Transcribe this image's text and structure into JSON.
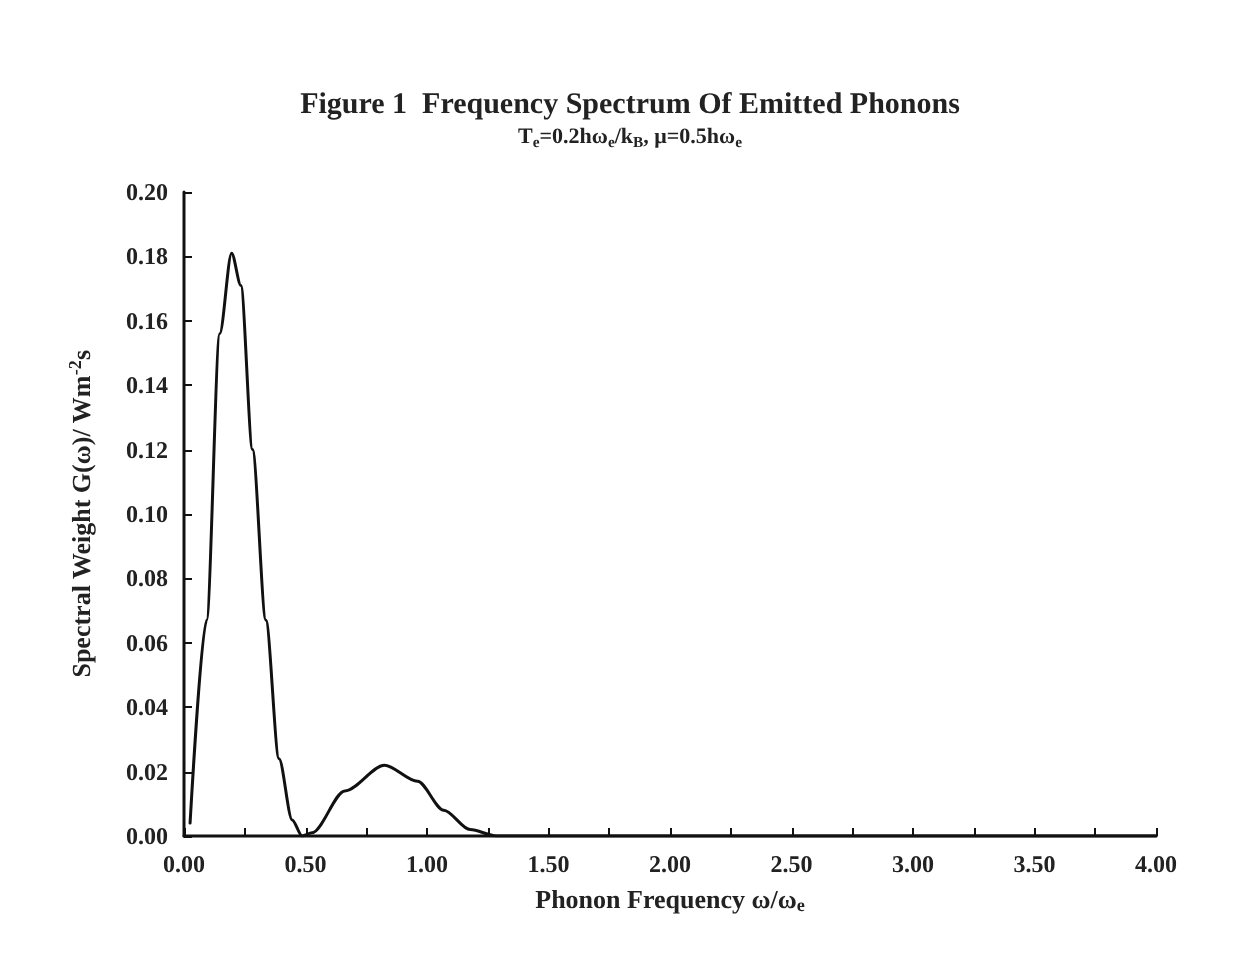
{
  "chart_data": {
    "type": "line",
    "title": "Figure 1  Frequency Spectrum Of Emitted Phonons",
    "subtitle": "T$_{e}$=0.2hω$_{e}$/k$_{B}$, μ=0.5hω$_{e}$",
    "xlabel": "Phonon Frequency ω/ω$_{e}$",
    "ylabel": "Spectral Weight G(ω)/ Wm$^{-2}$s",
    "x": [
      0.025,
      0.093,
      0.147,
      0.196,
      0.234,
      0.282,
      0.337,
      0.391,
      0.445,
      0.486,
      0.527,
      0.662,
      0.825,
      0.961,
      1.069,
      1.177,
      1.286,
      2.0,
      3.0,
      4.0
    ],
    "series": [
      {
        "color": "#111111",
        "values": [
          0.004,
          0.067,
          0.156,
          0.181,
          0.171,
          0.12,
          0.067,
          0.024,
          0.005,
          0.0,
          0.001,
          0.014,
          0.022,
          0.017,
          0.008,
          0.002,
          0.0,
          0.0,
          0.0,
          0.0
        ]
      }
    ],
    "xlim": [
      0,
      4
    ],
    "xticks": [
      {
        "value": 0,
        "label": "0.00"
      },
      {
        "value": 0.25,
        "label": null
      },
      {
        "value": 0.5,
        "label": "0.50"
      },
      {
        "value": 0.75,
        "label": null
      },
      {
        "value": 1,
        "label": "1.00"
      },
      {
        "value": 1.25,
        "label": null
      },
      {
        "value": 1.5,
        "label": "1.50"
      },
      {
        "value": 1.75,
        "label": null
      },
      {
        "value": 2,
        "label": "2.00"
      },
      {
        "value": 2.25,
        "label": null
      },
      {
        "value": 2.5,
        "label": "2.50"
      },
      {
        "value": 2.75,
        "label": null
      },
      {
        "value": 3,
        "label": "3.00"
      },
      {
        "value": 3.25,
        "label": null
      },
      {
        "value": 3.5,
        "label": "3.50"
      },
      {
        "value": 3.75,
        "label": null
      },
      {
        "value": 4,
        "label": "4.00"
      }
    ],
    "ylim": [
      0,
      0.2
    ],
    "yticks": [
      {
        "value": 0,
        "label": "0.00"
      },
      {
        "value": 0.02,
        "label": "0.02"
      },
      {
        "value": 0.04,
        "label": "0.04"
      },
      {
        "value": 0.06,
        "label": "0.06"
      },
      {
        "value": 0.08,
        "label": "0.08"
      },
      {
        "value": 0.1,
        "label": "0.10"
      },
      {
        "value": 0.12,
        "label": "0.12"
      },
      {
        "value": 0.14,
        "label": "0.14"
      },
      {
        "value": 0.16,
        "label": "0.16"
      },
      {
        "value": 0.18,
        "label": "0.18"
      },
      {
        "value": 0.2,
        "label": "0.20"
      }
    ],
    "grid": false,
    "marker": "none",
    "line_style": "solid"
  }
}
